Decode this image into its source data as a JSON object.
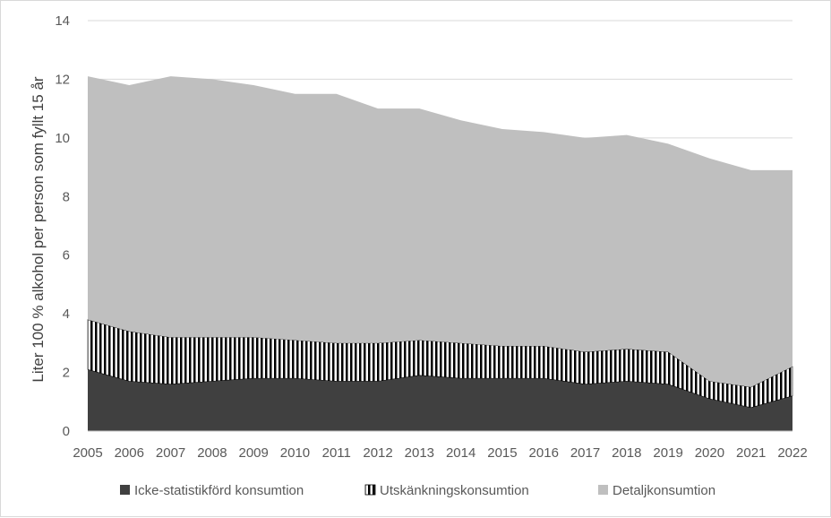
{
  "chart_data": {
    "type": "area",
    "stacked": true,
    "x": [
      "2005",
      "2006",
      "2007",
      "2008",
      "2009",
      "2010",
      "2011",
      "2012",
      "2013",
      "2014",
      "2015",
      "2016",
      "2017",
      "2018",
      "2019",
      "2020",
      "2021",
      "2022"
    ],
    "ylabel": "Liter 100 % alkohol per person som fyllt 15 år",
    "xlabel": "",
    "ylim": [
      0,
      14
    ],
    "yticks": [
      "0",
      "2",
      "4",
      "6",
      "8",
      "10",
      "12",
      "14"
    ],
    "grid": "horizontal",
    "legend_position": "bottom",
    "series": [
      {
        "name": "Icke-statistikförd konsumtion",
        "color": "#404040",
        "pattern": "solid",
        "values": [
          2.1,
          1.7,
          1.6,
          1.7,
          1.8,
          1.8,
          1.7,
          1.7,
          1.9,
          1.8,
          1.8,
          1.8,
          1.6,
          1.7,
          1.6,
          1.1,
          0.8,
          1.2
        ]
      },
      {
        "name": "Utskänkningskonsumtion",
        "color": "#000000",
        "pattern": "vertical-stripes",
        "values": [
          1.7,
          1.7,
          1.6,
          1.5,
          1.4,
          1.3,
          1.3,
          1.3,
          1.2,
          1.2,
          1.1,
          1.1,
          1.1,
          1.1,
          1.1,
          0.6,
          0.7,
          1.0
        ]
      },
      {
        "name": "Detaljkonsumtion",
        "color": "#bfbfbf",
        "pattern": "solid",
        "values": [
          8.3,
          8.4,
          8.9,
          8.8,
          8.6,
          8.4,
          8.5,
          8.0,
          7.9,
          7.6,
          7.4,
          7.3,
          7.3,
          7.3,
          7.1,
          7.6,
          7.4,
          6.7
        ]
      }
    ]
  }
}
